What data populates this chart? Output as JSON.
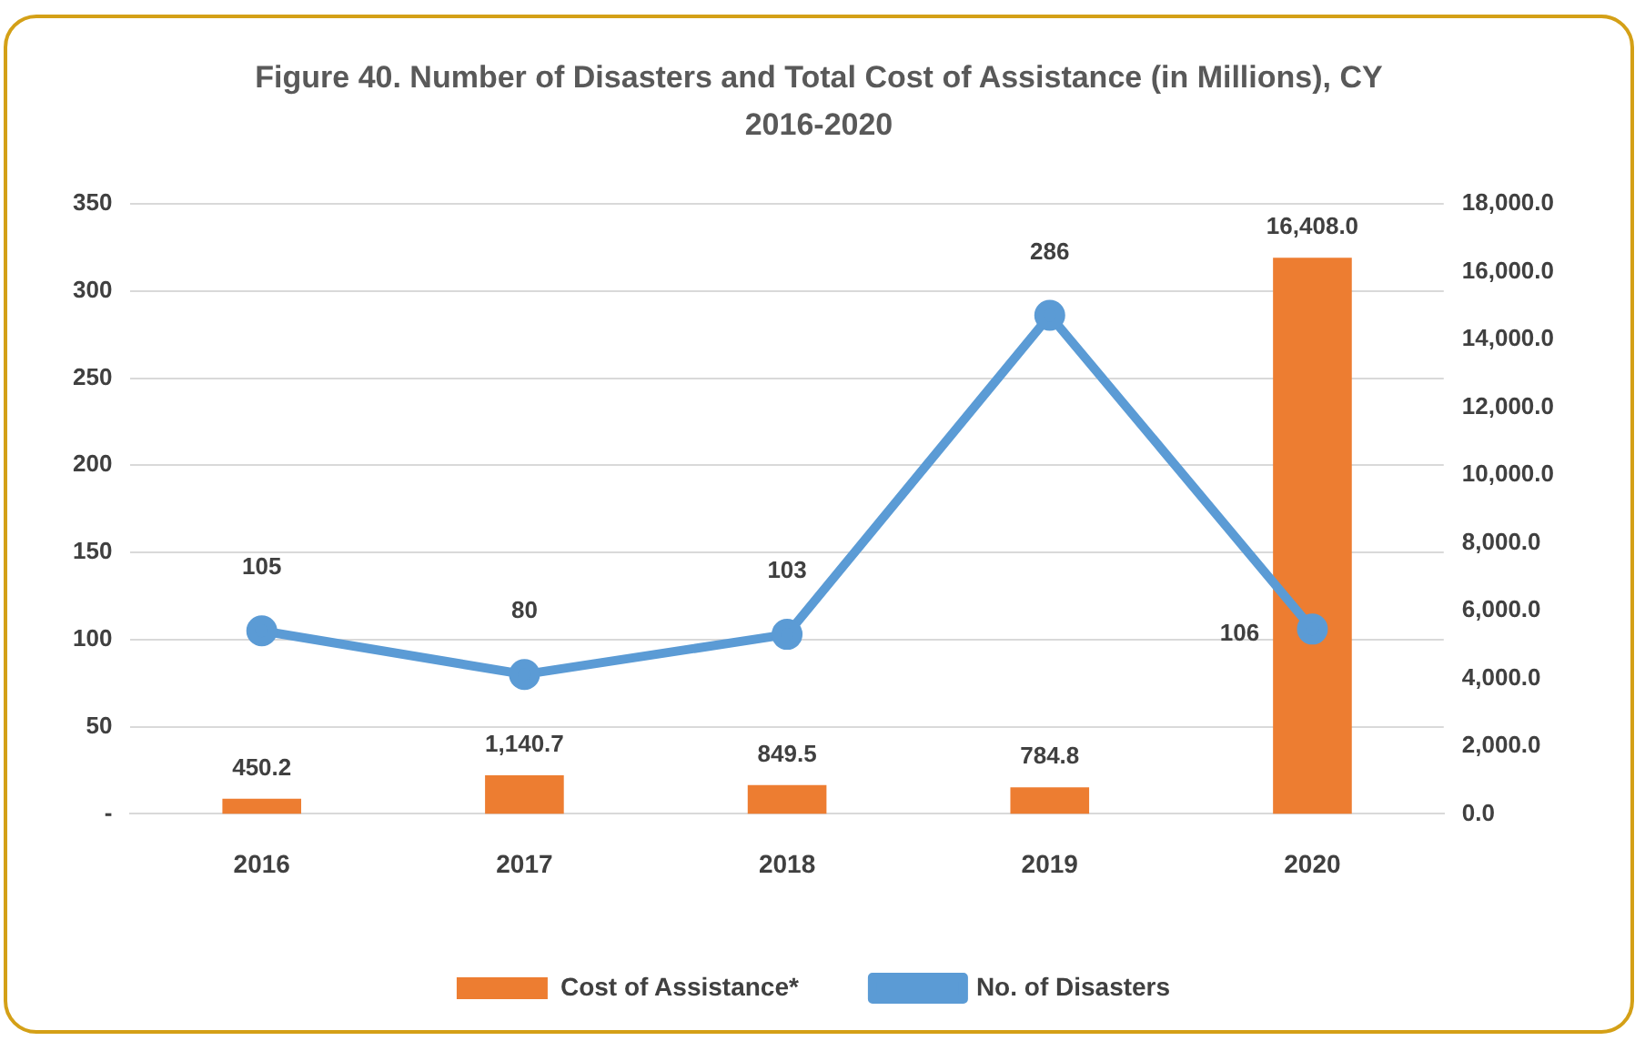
{
  "chart_data": {
    "type": "bar",
    "title": "Figure 40. Number of Disasters and Total Cost of Assistance (in Millions), CY 2016-2020",
    "categories": [
      "2016",
      "2017",
      "2018",
      "2019",
      "2020"
    ],
    "series": [
      {
        "name": "Cost of Assistance*",
        "axis": "y2",
        "color": "#ed7d31",
        "values": [
          450.2,
          1140.7,
          849.5,
          784.8,
          16408.0
        ],
        "value_labels": [
          "450.2",
          "1,140.7",
          "849.5",
          "784.8",
          "16,408.0"
        ]
      },
      {
        "name": "No. of Disasters",
        "type": "line",
        "axis": "y",
        "color": "#5b9bd5",
        "marker": "circle",
        "values": [
          105,
          80,
          103,
          286,
          106
        ],
        "value_labels": [
          "105",
          "80",
          "103",
          "286",
          "106"
        ]
      }
    ],
    "ylim": [
      0,
      350
    ],
    "yticks": [
      {
        "value": 0,
        "label": "-"
      },
      50,
      100,
      150,
      200,
      250,
      300,
      350
    ],
    "y2lim": [
      0,
      18000
    ],
    "y2ticks": [
      {
        "value": 0,
        "label": "0.0"
      },
      {
        "value": 2000,
        "label": "2,000.0"
      },
      {
        "value": 4000,
        "label": "4,000.0"
      },
      {
        "value": 6000,
        "label": "6,000.0"
      },
      {
        "value": 8000,
        "label": "8,000.0"
      },
      {
        "value": 10000,
        "label": "10,000.0"
      },
      {
        "value": 12000,
        "label": "12,000.0"
      },
      {
        "value": 14000,
        "label": "14,000.0"
      },
      {
        "value": 16000,
        "label": "16,000.0"
      },
      {
        "value": 18000,
        "label": "18,000.0"
      }
    ],
    "grid": "y",
    "legend": "bottom"
  }
}
